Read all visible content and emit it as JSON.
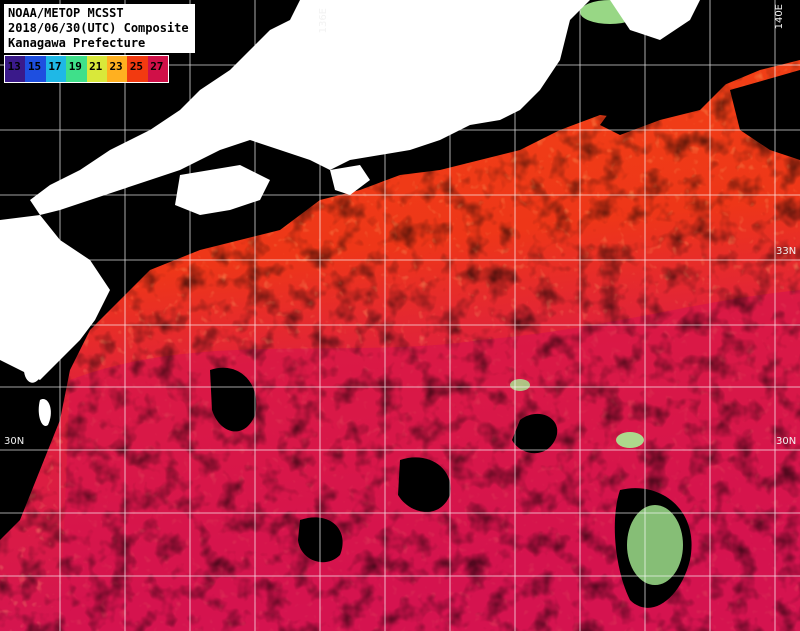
{
  "header": {
    "line1": "NOAA/METOP MCSST",
    "line2": "2018/06/30(UTC) Composite",
    "line3": "Kanagawa Prefecture"
  },
  "legend": {
    "items": [
      {
        "label": "13",
        "color": "#3a1a8a"
      },
      {
        "label": "15",
        "color": "#1e4fe0"
      },
      {
        "label": "17",
        "color": "#1fb8e6"
      },
      {
        "label": "19",
        "color": "#3fe08a"
      },
      {
        "label": "21",
        "color": "#d9e83a"
      },
      {
        "label": "23",
        "color": "#ffb020"
      },
      {
        "label": "25",
        "color": "#f23a10"
      },
      {
        "label": "27",
        "color": "#d01048"
      }
    ]
  },
  "grid_labels": {
    "lon_136": "136E",
    "lon_140": "140E",
    "lat_33_right": "33N",
    "lat_30_left": "30N",
    "lat_30_right": "30N"
  },
  "colors": {
    "land": "#ffffff",
    "cloud": "#000000",
    "grid": "#ffffff",
    "sst_warm_north": "#f03a10",
    "sst_hot_south": "#d8144a",
    "sst_cool_patch": "#aaf090"
  }
}
